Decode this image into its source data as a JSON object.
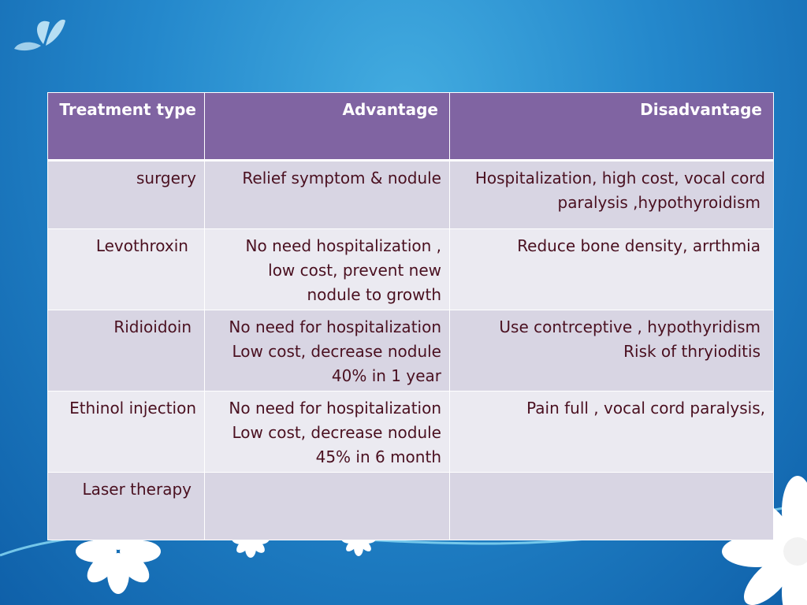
{
  "table": {
    "headers": [
      "Treatment type",
      "Advantage",
      "Disadvantage"
    ],
    "rows": [
      {
        "treatment": [
          "surgery"
        ],
        "advantage": [
          "Relief symptom & nodule"
        ],
        "disadvantage": [
          "Hospitalization, high cost, vocal cord",
          "paralysis ,hypothyroidism"
        ]
      },
      {
        "treatment": [
          "Levothroxin"
        ],
        "advantage": [
          "No need hospitalization ,",
          "low cost, prevent new",
          "nodule to growth"
        ],
        "disadvantage": [
          "Reduce bone density, arrthmia"
        ]
      },
      {
        "treatment": [
          "Ridioidoin"
        ],
        "advantage": [
          "No need for hospitalization",
          "Low cost, decrease nodule",
          "40% in 1 year"
        ],
        "disadvantage": [
          "Use contrceptive , hypothyridism",
          "Risk of thryioditis"
        ]
      },
      {
        "treatment": [
          "Ethinol injection"
        ],
        "advantage": [
          "No need for hospitalization",
          "Low cost, decrease nodule",
          "45%  in 6 month"
        ],
        "disadvantage": [
          "Pain full , vocal cord paralysis,"
        ]
      },
      {
        "treatment": [
          "Laser therapy"
        ],
        "advantage": [
          ""
        ],
        "disadvantage": [
          ""
        ]
      }
    ]
  },
  "colors": {
    "header_bg": "#8064a2",
    "row_dark": "#d8d5e3",
    "row_light": "#ebeaf1",
    "body_text": "#4a1020",
    "background": "#2488cc"
  },
  "decorations": [
    "butterfly-icon",
    "daisy-flower-icon"
  ]
}
